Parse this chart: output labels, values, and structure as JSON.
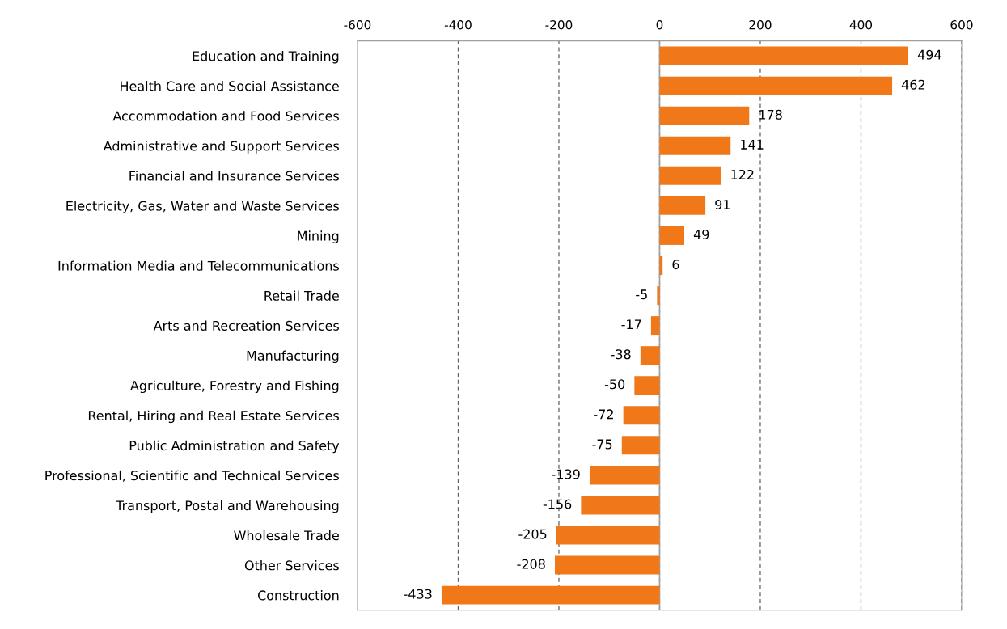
{
  "chart_data": {
    "type": "bar",
    "orientation": "horizontal",
    "categories": [
      "Education and Training",
      "Health Care and Social Assistance",
      "Accommodation and Food Services",
      "Administrative and Support Services",
      "Financial and Insurance Services",
      "Electricity, Gas, Water and Waste Services",
      "Mining",
      "Information Media and Telecommunications",
      "Retail Trade",
      "Arts and Recreation Services",
      "Manufacturing",
      "Agriculture, Forestry and Fishing",
      "Rental, Hiring and Real Estate Services",
      "Public Administration and Safety",
      "Professional, Scientific and Technical Services",
      "Transport, Postal and Warehousing",
      "Wholesale Trade",
      "Other Services",
      "Construction"
    ],
    "values": [
      494,
      462,
      178,
      141,
      122,
      91,
      49,
      6,
      -5,
      -17,
      -38,
      -50,
      -72,
      -75,
      -139,
      -156,
      -205,
      -208,
      -433
    ],
    "color": "#f07818",
    "xlim": [
      -600,
      600
    ],
    "xticks": [
      -600,
      -400,
      -200,
      0,
      200,
      400,
      600
    ],
    "grid": "x",
    "data_labels": true,
    "legend": false
  }
}
